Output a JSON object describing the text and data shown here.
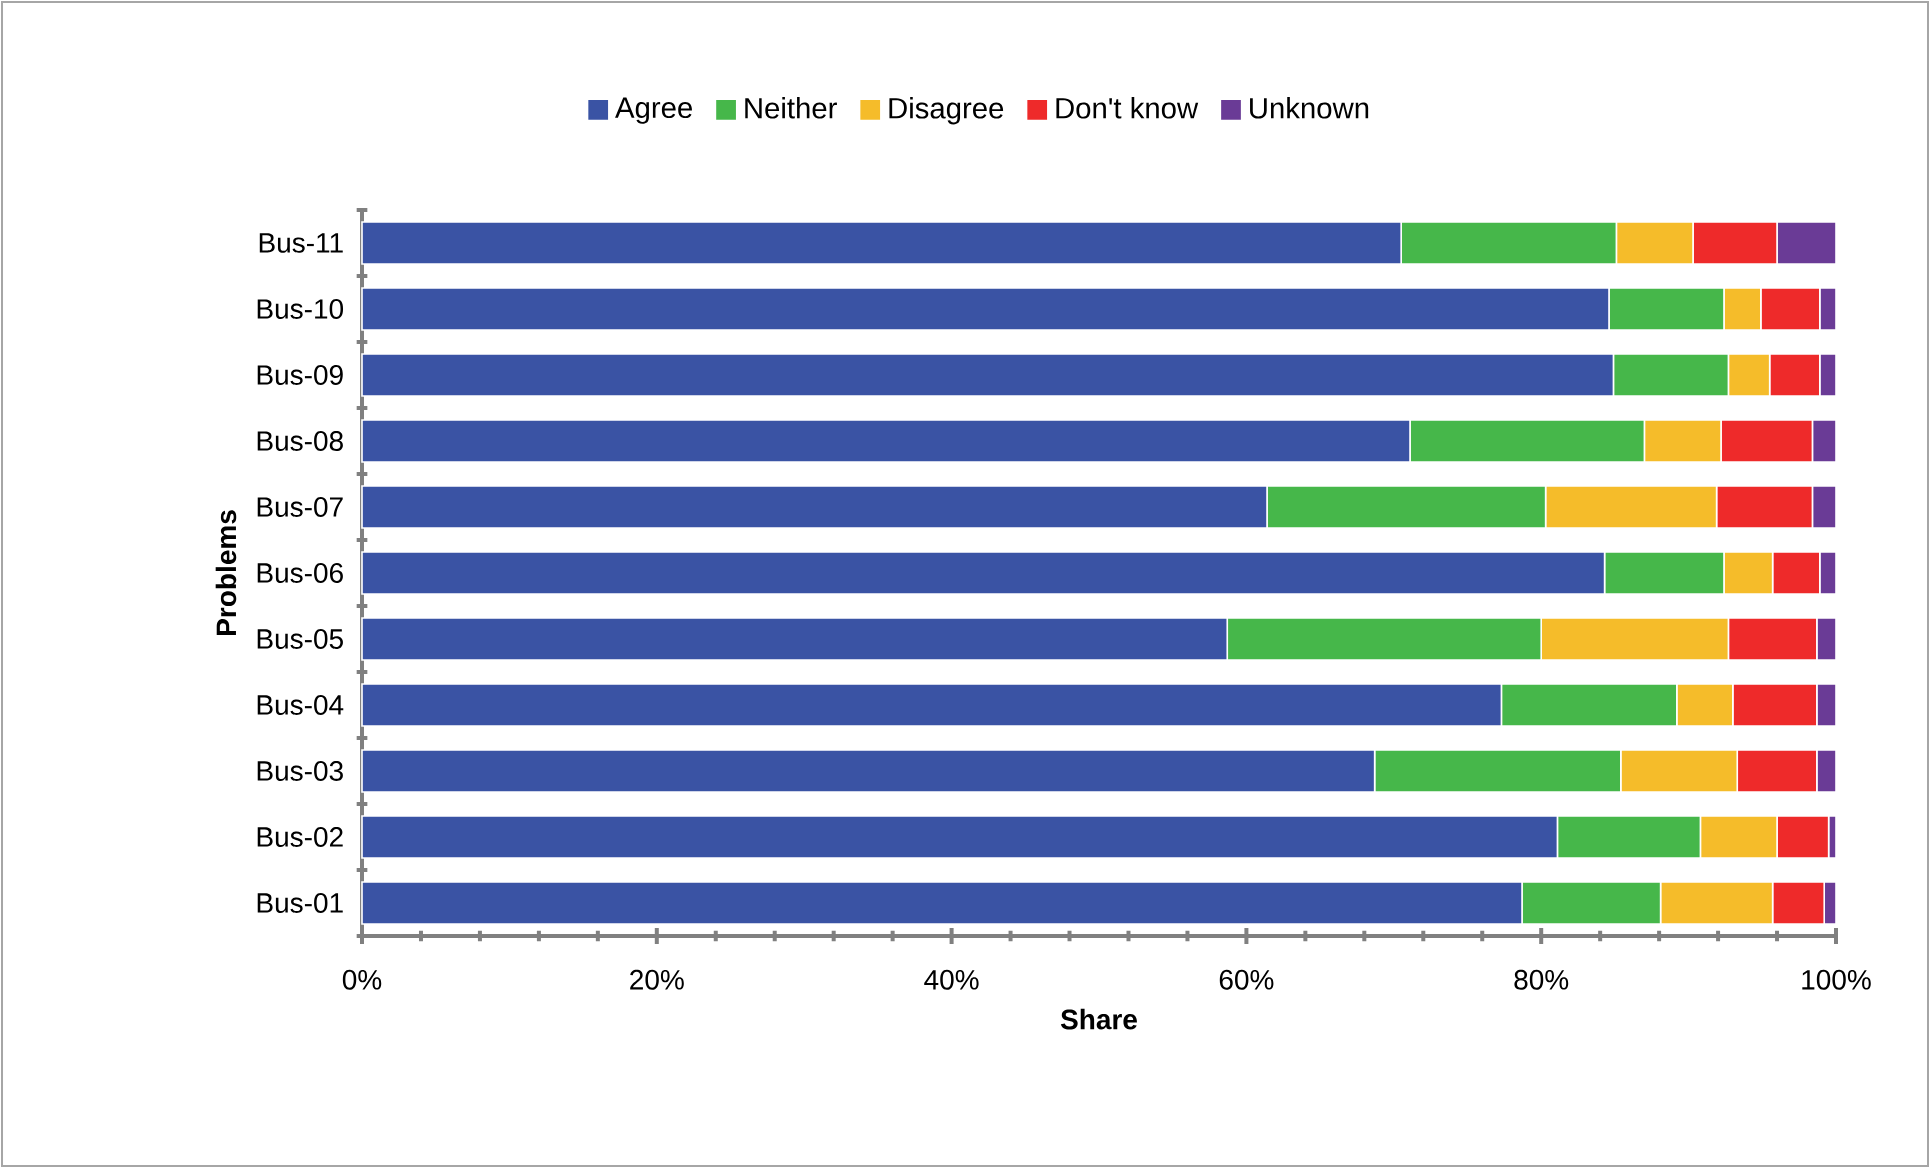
{
  "chart_data": {
    "type": "bar",
    "orientation": "horizontal",
    "stacked": true,
    "categories": [
      "Bus-11",
      "Bus-10",
      "Bus-09",
      "Bus-08",
      "Bus-07",
      "Bus-06",
      "Bus-05",
      "Bus-04",
      "Bus-03",
      "Bus-02",
      "Bus-01"
    ],
    "series": [
      {
        "name": "Agree",
        "color": "#3a53a4",
        "values": [
          70.5,
          84.6,
          84.9,
          71.1,
          61.4,
          84.3,
          58.7,
          77.3,
          68.7,
          81.1,
          78.7
        ]
      },
      {
        "name": "Neither",
        "color": "#46b74a",
        "values": [
          14.6,
          7.8,
          7.8,
          15.9,
          18.9,
          8.1,
          21.3,
          11.9,
          16.7,
          9.7,
          9.4
        ]
      },
      {
        "name": "Disagree",
        "color": "#f5bc2a",
        "values": [
          5.2,
          2.5,
          2.8,
          5.2,
          11.6,
          3.3,
          12.7,
          3.8,
          7.9,
          5.2,
          7.6
        ]
      },
      {
        "name": "Don't know",
        "color": "#ee2a2a",
        "values": [
          5.7,
          4.0,
          3.4,
          6.2,
          6.5,
          3.2,
          6.0,
          5.7,
          5.4,
          3.5,
          3.5
        ]
      },
      {
        "name": "Unknown",
        "color": "#6a3b96",
        "values": [
          4.0,
          1.1,
          1.1,
          1.6,
          1.6,
          1.1,
          1.3,
          1.3,
          1.3,
          0.5,
          0.8
        ]
      }
    ],
    "xlim": [
      0,
      100
    ],
    "xticks": [
      {
        "value": 0,
        "label": "0%"
      },
      {
        "value": 20,
        "label": "20%"
      },
      {
        "value": 40,
        "label": "40%"
      },
      {
        "value": 60,
        "label": "60%"
      },
      {
        "value": 80,
        "label": "80%"
      },
      {
        "value": 100,
        "label": "100%"
      }
    ],
    "xlabel": "Share",
    "ylabel": "Problems",
    "legend": "top"
  }
}
